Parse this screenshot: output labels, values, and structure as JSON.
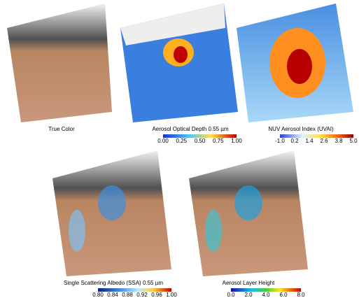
{
  "panels": [
    {
      "title": "True Color"
    },
    {
      "title": "Aerosol Optical Depth 0.55 µm",
      "colorbar": [
        "0.00",
        "0.25",
        "0.50",
        "0.75",
        "1.00"
      ]
    },
    {
      "title": "NUV Aerosol Index (UVAI)",
      "colorbar": [
        "-1.0",
        "0.2",
        "1.4",
        "2.6",
        "3.8",
        "5.0"
      ]
    },
    {
      "title": "Single Scattering Albedo (SSA) 0.55 µm",
      "colorbar": [
        "0.80",
        "0.84",
        "0.88",
        "0.92",
        "0.96",
        "1.00"
      ]
    },
    {
      "title": "Aerosol Layer Height",
      "colorbar": [
        "0.0",
        "2.0",
        "4.0",
        "6.0",
        "8.0"
      ]
    }
  ]
}
